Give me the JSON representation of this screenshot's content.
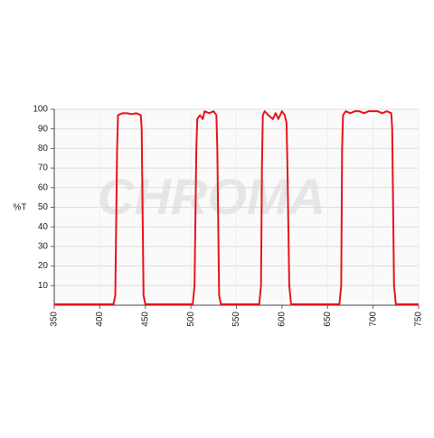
{
  "chart_data": {
    "type": "line",
    "y_label": "%T",
    "watermark": "CHROMA",
    "x": [
      350,
      415,
      417,
      419,
      420,
      425,
      430,
      435,
      440,
      445,
      446,
      448,
      450,
      502,
      504,
      506,
      507,
      510,
      513,
      515,
      520,
      525,
      528,
      529,
      531,
      533,
      575,
      577,
      578,
      579,
      581,
      585,
      590,
      593,
      596,
      600,
      603,
      605,
      606,
      608,
      610,
      663,
      665,
      666,
      667,
      670,
      675,
      680,
      685,
      690,
      695,
      700,
      705,
      710,
      715,
      720,
      721,
      723,
      725,
      750
    ],
    "values": [
      0.5,
      0.5,
      5,
      80,
      97,
      98,
      98,
      97.5,
      98,
      97,
      90,
      5,
      0.5,
      0.5,
      10,
      80,
      95,
      97,
      95,
      99,
      98,
      99,
      97,
      80,
      5,
      0.5,
      0.5,
      10,
      70,
      97,
      99,
      97,
      95,
      98,
      95,
      99,
      97,
      93,
      70,
      10,
      0.5,
      0.5,
      10,
      80,
      97,
      99,
      98,
      99,
      99,
      98,
      99,
      99,
      99,
      98,
      99,
      98,
      90,
      10,
      0.5,
      0.5
    ],
    "color": "#e8141c",
    "xlim": [
      350,
      750
    ],
    "xticks": [
      350,
      400,
      450,
      500,
      550,
      600,
      650,
      700,
      750
    ],
    "ylim": [
      0,
      100
    ],
    "yticks": [
      10,
      20,
      30,
      40,
      50,
      60,
      70,
      80,
      90,
      100
    ],
    "grid": true
  }
}
